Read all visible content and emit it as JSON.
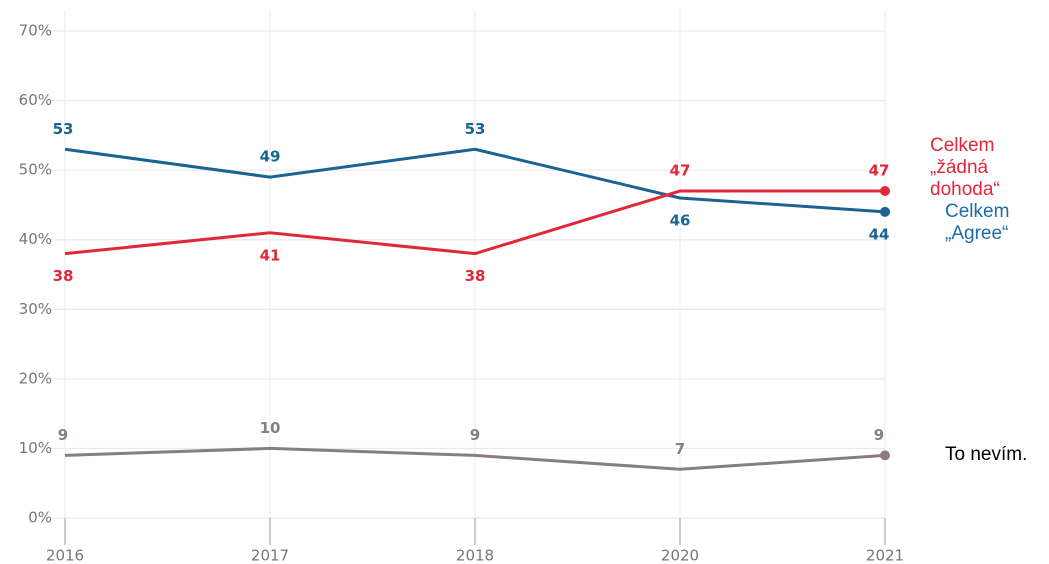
{
  "chart_data": {
    "type": "line",
    "categories": [
      "2016",
      "2017",
      "2018",
      "2020",
      "2021"
    ],
    "series": [
      {
        "name": "Celkem „Agree“",
        "color": "#1a6491",
        "legend_color": "#1a6ea8",
        "values": [
          53,
          49,
          53,
          46,
          44
        ]
      },
      {
        "name": "Celkem „žádná dohoda“",
        "color": "#e0283a",
        "legend_color": "#e0283a",
        "values": [
          38,
          41,
          38,
          47,
          47
        ]
      },
      {
        "name": "To nevím.",
        "color": "#8a7d80",
        "legend_color": "#000000",
        "values": [
          9,
          10,
          9,
          7,
          9
        ]
      }
    ],
    "ylim": [
      0,
      70
    ],
    "yticks": [
      {
        "value": 0,
        "label": "0%"
      },
      {
        "value": 10,
        "label": "10%"
      },
      {
        "value": 20,
        "label": "20%"
      },
      {
        "value": 30,
        "label": "30%"
      },
      {
        "value": 40,
        "label": "40%"
      },
      {
        "value": 50,
        "label": "50%"
      },
      {
        "value": 60,
        "label": "60%"
      },
      {
        "value": 70,
        "label": "70%"
      }
    ],
    "grid": true
  }
}
